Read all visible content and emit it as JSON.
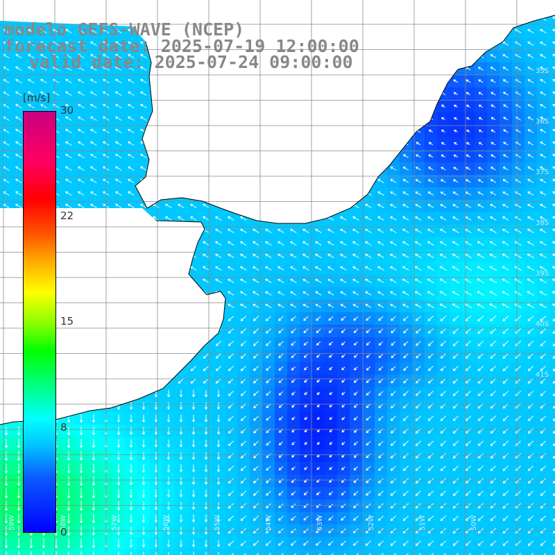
{
  "title": {
    "line1": "modelo GEFS-WAVE (NCEP)",
    "line2": "forecast date: 2025-07-19 12:00:00",
    "line3": "valid date: 2025-07-24 09:00:00"
  },
  "colorbar": {
    "units": "[m/s]",
    "ticks": [
      "30",
      "22",
      "15",
      "8",
      "0"
    ],
    "range": [
      0,
      30
    ],
    "colors": [
      "#0000ff",
      "#00c8ff",
      "#00ffff",
      "#00ff00",
      "#ffff00",
      "#ff6000",
      "#ff0000",
      "#c80080"
    ]
  },
  "map": {
    "type": "heatmap",
    "variable": "wind speed and direction",
    "colors": {
      "land": "#ffffff",
      "coastline": "#000000",
      "grid": "#888888",
      "arrows": "#ffffff"
    },
    "lat_labels": [
      "35S",
      "36S",
      "37S",
      "38S",
      "39S",
      "40S",
      "41S"
    ],
    "lon_labels": [
      "59W",
      "58W",
      "57W",
      "56W",
      "55W",
      "54W",
      "53W",
      "52W",
      "51W",
      "50W"
    ]
  }
}
